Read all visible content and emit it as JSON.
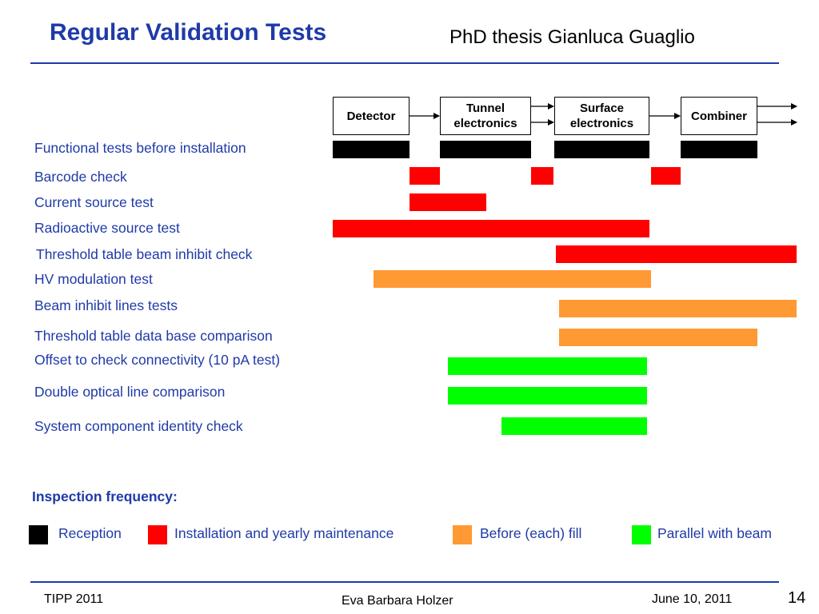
{
  "header": {
    "title": "Regular Validation Tests",
    "subtitle": "PhD thesis Gianluca Guaglio"
  },
  "chain": [
    {
      "label": "Detector"
    },
    {
      "label": "Tunnel electronics"
    },
    {
      "label": "Surface electronics"
    },
    {
      "label": "Combiner"
    }
  ],
  "tests": [
    {
      "label": "Functional tests before installation",
      "category": "reception"
    },
    {
      "label": "Barcode check",
      "category": "installation"
    },
    {
      "label": "Current source test",
      "category": "installation"
    },
    {
      "label": "Radioactive source test",
      "category": "installation"
    },
    {
      "label": "Threshold table beam inhibit check",
      "category": "installation"
    },
    {
      "label": "HV modulation test",
      "category": "fill"
    },
    {
      "label": "Beam inhibit lines tests",
      "category": "fill"
    },
    {
      "label": "Threshold table data base comparison",
      "category": "fill"
    },
    {
      "label": "Offset to check connectivity (10 pA test)",
      "category": "parallel"
    },
    {
      "label": "Double optical line comparison",
      "category": "parallel"
    },
    {
      "label": "System component identity check",
      "category": "parallel"
    }
  ],
  "legend": {
    "heading": "Inspection frequency:",
    "items": [
      {
        "label": "Reception",
        "category": "reception",
        "color": "#000000"
      },
      {
        "label": "Installation and yearly maintenance",
        "category": "installation",
        "color": "#ff0000"
      },
      {
        "label": "Before (each) fill",
        "category": "fill",
        "color": "#ff9933"
      },
      {
        "label": "Parallel with beam",
        "category": "parallel",
        "color": "#00ff00"
      }
    ]
  },
  "footer": {
    "left": "TIPP 2011",
    "center": "Eva Barbara Holzer",
    "date": "June 10, 2011",
    "page": "14"
  }
}
